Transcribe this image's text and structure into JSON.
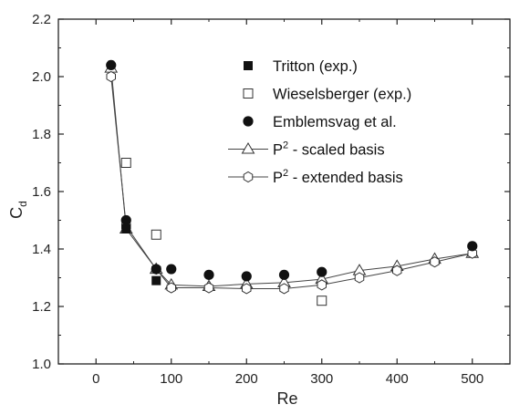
{
  "chart_data": {
    "type": "scatter",
    "xlabel": "Re",
    "ylabel": {
      "main": "C",
      "sub": "d"
    },
    "xlim": [
      -50,
      550
    ],
    "ylim": [
      1.0,
      2.2
    ],
    "xticks": [
      "0",
      "100",
      "200",
      "300",
      "400",
      "500"
    ],
    "xtick_values": [
      0,
      100,
      200,
      300,
      400,
      500
    ],
    "yticks": [
      "1.0",
      "1.2",
      "1.4",
      "1.6",
      "1.8",
      "2.0",
      "2.2"
    ],
    "ytick_values": [
      1.0,
      1.2,
      1.4,
      1.6,
      1.8,
      2.0,
      2.2
    ],
    "grid": false,
    "legend_position": "top-right",
    "series": [
      {
        "name": "Tritton (exp.)",
        "marker": "filled-square",
        "line": false,
        "x": [
          40,
          80
        ],
        "y": [
          1.47,
          1.29
        ]
      },
      {
        "name": "Wieselsberger (exp.)",
        "marker": "open-square",
        "line": false,
        "x": [
          40,
          80,
          300
        ],
        "y": [
          1.7,
          1.45,
          1.22
        ]
      },
      {
        "name": "Emblemsvag et al.",
        "marker": "filled-circle",
        "line": false,
        "x": [
          20,
          40,
          80,
          100,
          150,
          200,
          250,
          300,
          500
        ],
        "y": [
          2.04,
          1.5,
          1.33,
          1.33,
          1.31,
          1.305,
          1.31,
          1.32,
          1.41
        ]
      },
      {
        "name_main": "P",
        "name_sup": "2",
        "name_rest": " - scaled basis",
        "marker": "open-triangle",
        "line": true,
        "x": [
          20,
          40,
          80,
          100,
          150,
          200,
          250,
          300,
          350,
          400,
          450,
          500
        ],
        "y": [
          2.03,
          1.47,
          1.33,
          1.275,
          1.27,
          1.278,
          1.283,
          1.295,
          1.325,
          1.34,
          1.365,
          1.385
        ]
      },
      {
        "name_main": "P",
        "name_sup": "2",
        "name_rest": " - extended basis",
        "marker": "open-hexagon",
        "line": true,
        "x": [
          20,
          40,
          80,
          100,
          150,
          200,
          250,
          300,
          350,
          400,
          450,
          500
        ],
        "y": [
          2.0,
          1.48,
          1.33,
          1.265,
          1.265,
          1.262,
          1.262,
          1.275,
          1.3,
          1.325,
          1.355,
          1.385
        ]
      }
    ]
  }
}
